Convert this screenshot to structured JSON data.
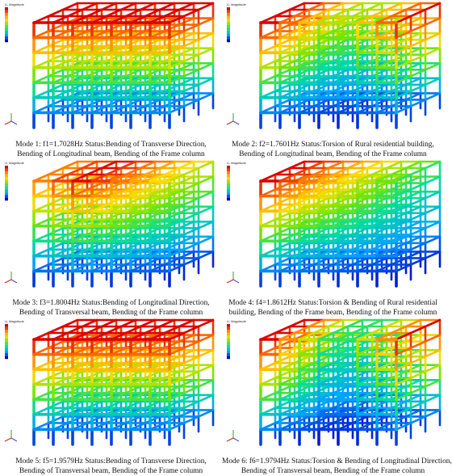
{
  "panels": [
    {
      "legend_title": "U, Magnitude",
      "caption": [
        "Mode 1: f1=1.7028Hz   Status:Bending of Transverse Direction,",
        "Bending of Longitudinal beam, Bending of the Frame column"
      ]
    },
    {
      "legend_title": "U, Magnitude",
      "caption": [
        "Mode 2: f2=1.7601Hz   Status:Torsion of Rural residential building,",
        "Bending of Longitudinal beam, Bending of the Frame column"
      ]
    },
    {
      "legend_title": "U, Magnitude",
      "caption": [
        "Mode 3: f3=1.8004Hz   Status:Bending of Longitudinal Direction,",
        "Bending of Transversal beam, Bending of the Frame column"
      ]
    },
    {
      "legend_title": "U, Magnitude",
      "caption": [
        "Mode 4: f4=1.8612Hz   Status:Torsion & Bending of Rural residential",
        "building, Bending of the Frame beam, Bending of the Frame column"
      ]
    },
    {
      "legend_title": "U, Magnitude",
      "caption": [
        "Mode 5: f5=1.9579Hz   Status:Bending of Transverse Direction,",
        "Bending of Transversal beam, Bending of the Frame column"
      ]
    },
    {
      "legend_title": "U, Magnitude",
      "caption": [
        "Mode 6: f6=1.9794Hz   Status:Torsion & Bending of Longitudinal Direction,",
        "Bending of Transversal beam, Bending of the Frame column"
      ]
    }
  ]
}
